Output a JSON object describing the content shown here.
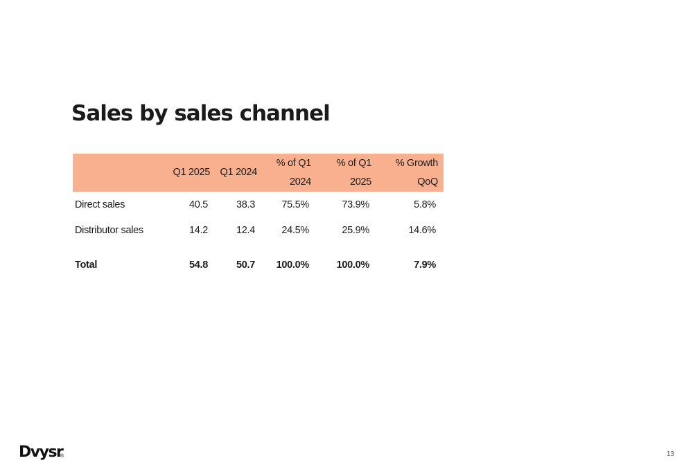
{
  "slide": {
    "title": "Sales by sales channel",
    "page_number": "13"
  },
  "brand": {
    "logo_text": "Dvysr",
    "registered_mark": "®"
  },
  "colors": {
    "header_background": "#f9b08f"
  },
  "table": {
    "columns": [
      {
        "line1": "",
        "line2": ""
      },
      {
        "line1": "Q1 2025",
        "line2": ""
      },
      {
        "line1": "Q1 2024",
        "line2": ""
      },
      {
        "line1": "% of Q1",
        "line2": "2024"
      },
      {
        "line1": "% of Q1",
        "line2": "2025"
      },
      {
        "line1": "% Growth",
        "line2": "QoQ"
      }
    ],
    "rows": [
      {
        "label": "Direct sales",
        "q1_2025": "40.5",
        "q1_2024": "38.3",
        "pct_q1_2024": "75.5%",
        "pct_q1_2025": "73.9%",
        "growth_qoq": "5.8%"
      },
      {
        "label": "Distributor sales",
        "q1_2025": "14.2",
        "q1_2024": "12.4",
        "pct_q1_2024": "24.5%",
        "pct_q1_2025": "25.9%",
        "growth_qoq": "14.6%"
      }
    ],
    "total": {
      "label": "Total",
      "q1_2025": "54.8",
      "q1_2024": "50.7",
      "pct_q1_2024": "100.0%",
      "pct_q1_2025": "100.0%",
      "growth_qoq": "7.9%"
    }
  }
}
